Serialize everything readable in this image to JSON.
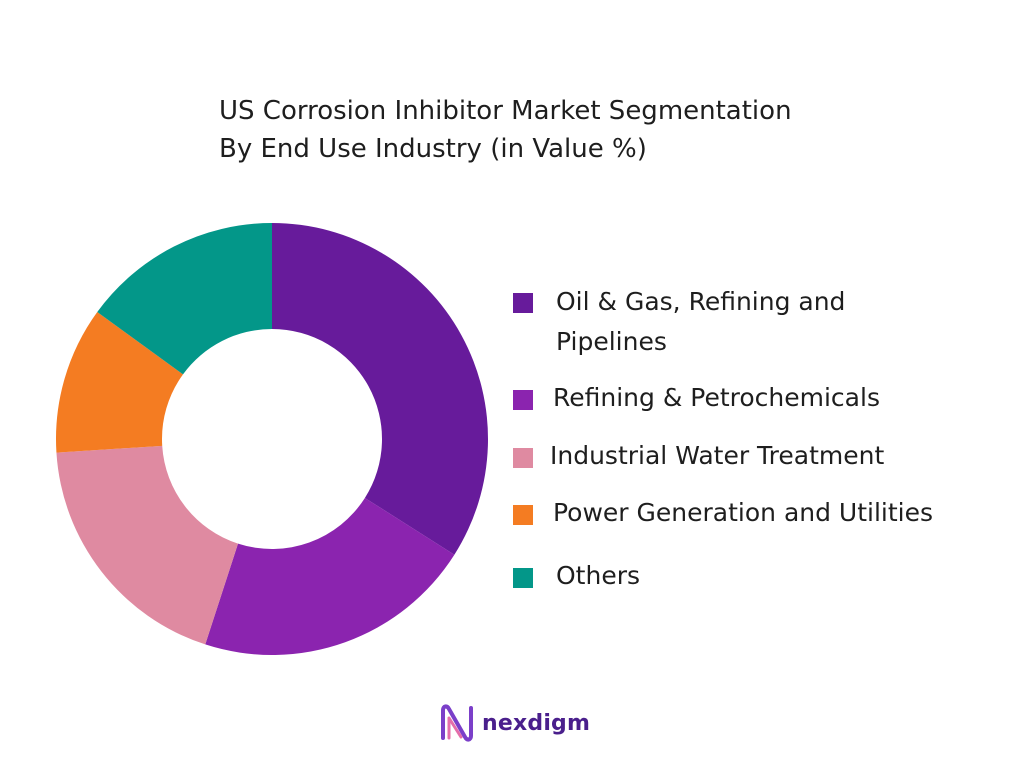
{
  "chart_data": {
    "type": "pie",
    "donut": true,
    "title_lines": [
      "US Corrosion Inhibitor Market Segmentation",
      "By End Use Industry (in Value %)"
    ],
    "legend_placement": "right",
    "series": [
      {
        "name": "Oil & Gas, Refining and Pipelines",
        "legend_lines": [
          "Oil & Gas, Refining and",
          "Pipelines"
        ],
        "value": 34,
        "color": "#671b9b"
      },
      {
        "name": "Refining & Petrochemicals",
        "legend_lines": [
          "Refining & Petrochemicals"
        ],
        "value": 21,
        "color": "#8b24af"
      },
      {
        "name": "Industrial Water Treatment",
        "legend_lines": [
          "Industrial Water Treatment"
        ],
        "value": 19,
        "color": "#df8aa1"
      },
      {
        "name": "Power Generation and Utilities",
        "legend_lines": [
          "Power Generation and Utilities"
        ],
        "value": 11,
        "color": "#f47c22"
      },
      {
        "name": "Others",
        "legend_lines": [
          "Others"
        ],
        "value": 15,
        "color": "#039789"
      }
    ]
  },
  "brand": {
    "name": "nexdigm",
    "logo_icon": "nexdigm-logo-icon",
    "color": "#4a1f8c"
  }
}
